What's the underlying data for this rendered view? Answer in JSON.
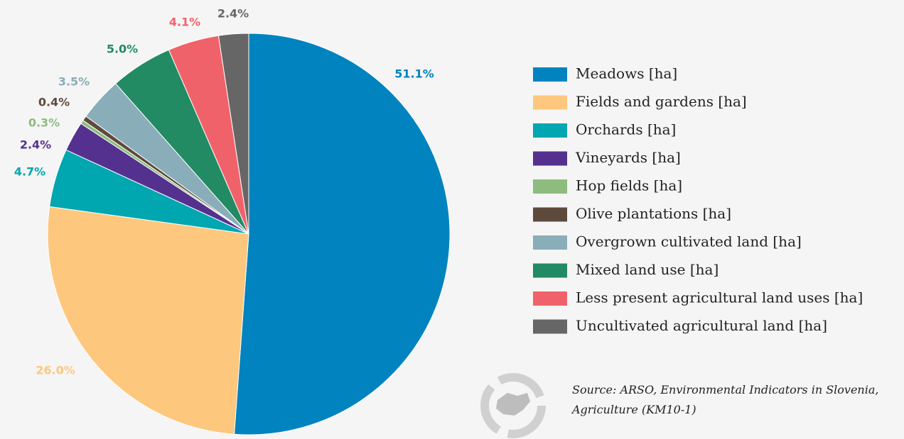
{
  "chart_data": {
    "type": "pie",
    "categories": [
      "Meadows [ha]",
      "Fields and gardens [ha]",
      "Orchards [ha]",
      "Vineyards [ha]",
      "Hop fields [ha]",
      "Olive plantations [ha]",
      "Overgrown cultivated land [ha]",
      "Mixed land use [ha]",
      "Less present agricultural land uses [ha]",
      "Uncultivated agricultural land [ha]"
    ],
    "values": [
      51.1,
      26.0,
      4.7,
      2.4,
      0.3,
      0.4,
      3.5,
      5.0,
      4.1,
      2.4
    ],
    "value_labels": [
      "51.1%",
      "26.0%",
      "4.7%",
      "2.4%",
      "0.3%",
      "0.4%",
      "3.5%",
      "5.0%",
      "4.1%",
      "2.4%"
    ],
    "colors": [
      "#0083be",
      "#fdc77d",
      "#00a6b0",
      "#55318f",
      "#8cbd7f",
      "#5e4a3d",
      "#8aadba",
      "#228b63",
      "#f0626a",
      "#666666"
    ],
    "legend": "right",
    "source": "Source: ARSO, Environmental Indicators in Slovenia, Agriculture (KM10-1)"
  }
}
